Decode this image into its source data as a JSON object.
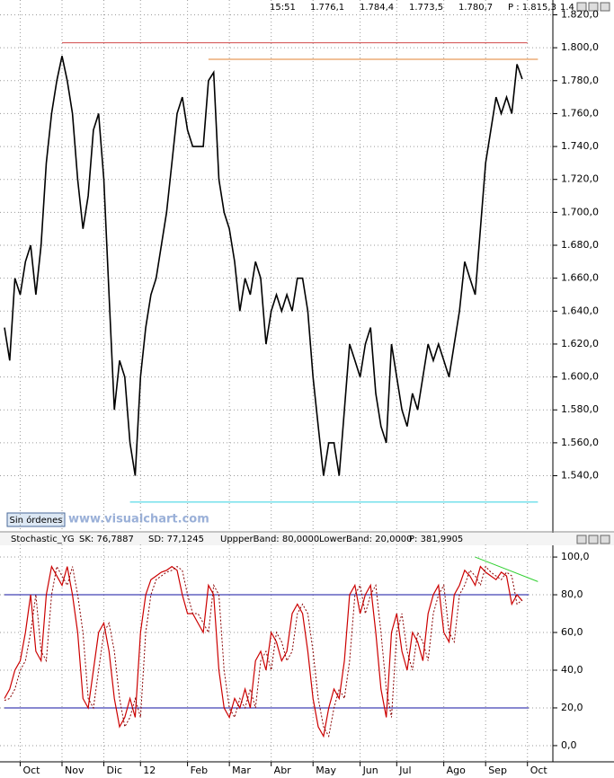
{
  "chart_data": [
    {
      "type": "line",
      "color": "#000000",
      "info": [
        "15:51",
        "1.776,1",
        "1.784,4",
        "1.773,5",
        "1.780,7",
        "P : 1.815,3",
        "1.4"
      ],
      "button": "Sin órdenes",
      "watermark": "www.visualchart.com",
      "values": [
        1630,
        1610,
        1660,
        1650,
        1670,
        1680,
        1650,
        1680,
        1730,
        1760,
        1780,
        1795,
        1780,
        1760,
        1720,
        1690,
        1710,
        1750,
        1760,
        1720,
        1650,
        1580,
        1610,
        1600,
        1560,
        1540,
        1600,
        1630,
        1650,
        1660,
        1680,
        1700,
        1730,
        1760,
        1770,
        1750,
        1740,
        1740,
        1740,
        1780,
        1785,
        1720,
        1700,
        1690,
        1670,
        1640,
        1660,
        1650,
        1670,
        1660,
        1620,
        1640,
        1650,
        1640,
        1650,
        1640,
        1660,
        1660,
        1640,
        1600,
        1570,
        1540,
        1560,
        1560,
        1540,
        1580,
        1620,
        1610,
        1600,
        1620,
        1630,
        1590,
        1570,
        1560,
        1620,
        1600,
        1580,
        1570,
        1590,
        1580,
        1600,
        1620,
        1610,
        1620,
        1610,
        1600,
        1620,
        1640,
        1670,
        1660,
        1650,
        1690,
        1730,
        1750,
        1770,
        1760,
        1770,
        1760,
        1790,
        1781
      ],
      "xlim": [
        0,
        104
      ],
      "ylim": [
        1507,
        1829
      ],
      "yticks": [
        {
          "value": 1820,
          "label": "1.820,0"
        },
        {
          "value": 1800,
          "label": "1.800,0"
        },
        {
          "value": 1780,
          "label": "1.780,0"
        },
        {
          "value": 1760,
          "label": "1.760,0"
        },
        {
          "value": 1740,
          "label": "1.740,0"
        },
        {
          "value": 1720,
          "label": "1.720,0"
        },
        {
          "value": 1700,
          "label": "1.700,0"
        },
        {
          "value": 1680,
          "label": "1.680,0"
        },
        {
          "value": 1660,
          "label": "1.660,0"
        },
        {
          "value": 1640,
          "label": "1.640,0"
        },
        {
          "value": 1620,
          "label": "1.620,0"
        },
        {
          "value": 1600,
          "label": "1.600,0"
        },
        {
          "value": 1580,
          "label": "1.580,0"
        },
        {
          "value": 1560,
          "label": "1.560,0"
        },
        {
          "value": 1540,
          "label": "1.540,0"
        }
      ],
      "lines": [
        {
          "value": 1803,
          "from": 11,
          "to": 100,
          "color": "#d04848"
        },
        {
          "value": 1793,
          "from": 39,
          "to": 102,
          "color": "#e08030"
        },
        {
          "value": 1524,
          "from": 24,
          "to": 102,
          "color": "#30d0e0"
        }
      ],
      "grid": true
    },
    {
      "type": "line",
      "title": "Stochastic_YG",
      "info": [
        "SK: 76,7887",
        "SD: 77,1245",
        "UppperBand: 80,0000",
        "LowerBand: 20,0000",
        "P: 381,9905"
      ],
      "series": [
        {
          "name": "SK",
          "color": "#cc0000",
          "dash": false,
          "values": [
            25,
            30,
            40,
            45,
            60,
            80,
            50,
            45,
            80,
            95,
            90,
            85,
            95,
            80,
            60,
            25,
            20,
            40,
            60,
            65,
            50,
            25,
            10,
            15,
            25,
            15,
            60,
            80,
            88,
            90,
            92,
            93,
            95,
            93,
            80,
            70,
            70,
            65,
            60,
            85,
            80,
            40,
            20,
            15,
            25,
            20,
            30,
            20,
            45,
            50,
            40,
            60,
            55,
            45,
            50,
            70,
            75,
            70,
            50,
            25,
            10,
            5,
            20,
            30,
            25,
            45,
            80,
            85,
            70,
            80,
            85,
            60,
            30,
            15,
            60,
            70,
            50,
            40,
            60,
            55,
            45,
            70,
            80,
            85,
            60,
            55,
            80,
            85,
            93,
            90,
            85,
            95,
            92,
            90,
            88,
            92,
            90,
            75,
            80,
            76.8
          ]
        },
        {
          "name": "SD",
          "color": "#880000",
          "dash": true,
          "values": [
            24,
            25,
            30,
            40,
            45,
            60,
            80,
            50,
            45,
            80,
            95,
            90,
            85,
            95,
            80,
            60,
            25,
            20,
            40,
            60,
            65,
            50,
            25,
            10,
            15,
            25,
            15,
            60,
            80,
            88,
            90,
            92,
            93,
            95,
            93,
            80,
            70,
            70,
            65,
            60,
            85,
            80,
            40,
            20,
            15,
            25,
            20,
            30,
            20,
            45,
            50,
            40,
            60,
            55,
            45,
            50,
            70,
            75,
            70,
            50,
            25,
            10,
            5,
            20,
            30,
            25,
            45,
            80,
            85,
            70,
            80,
            85,
            60,
            30,
            15,
            60,
            70,
            50,
            40,
            60,
            55,
            45,
            70,
            80,
            85,
            60,
            55,
            80,
            85,
            93,
            90,
            85,
            95,
            92,
            90,
            88,
            92,
            90,
            75,
            77.1
          ]
        }
      ],
      "bands": [
        {
          "value": 80,
          "color": "#1010a0"
        },
        {
          "value": 20,
          "color": "#1010a0"
        }
      ],
      "trend": {
        "from": [
          90,
          100
        ],
        "to": [
          102,
          87
        ],
        "color": "#30d030"
      },
      "xlim": [
        0,
        104
      ],
      "xticks": [
        {
          "value": 3,
          "label": "Oct"
        },
        {
          "value": 11,
          "label": "Nov"
        },
        {
          "value": 19,
          "label": "Dic"
        },
        {
          "value": 26,
          "label": "12"
        },
        {
          "value": 35,
          "label": "Feb"
        },
        {
          "value": 43,
          "label": "Mar"
        },
        {
          "value": 51,
          "label": "Abr"
        },
        {
          "value": 59,
          "label": "May"
        },
        {
          "value": 68,
          "label": "Jun"
        },
        {
          "value": 75,
          "label": "Jul"
        },
        {
          "value": 84,
          "label": "Ago"
        },
        {
          "value": 92,
          "label": "Sep"
        },
        {
          "value": 100,
          "label": "Oct"
        }
      ],
      "ylim": [
        -8.6,
        106.7
      ],
      "yticks": [
        {
          "value": 0,
          "label": "0,0"
        },
        {
          "value": 20,
          "label": "20,0"
        },
        {
          "value": 40,
          "label": "40,0"
        },
        {
          "value": 60,
          "label": "60,0"
        },
        {
          "value": 80,
          "label": "80,0"
        },
        {
          "value": 100,
          "label": "100,0"
        }
      ],
      "grid": true
    }
  ]
}
